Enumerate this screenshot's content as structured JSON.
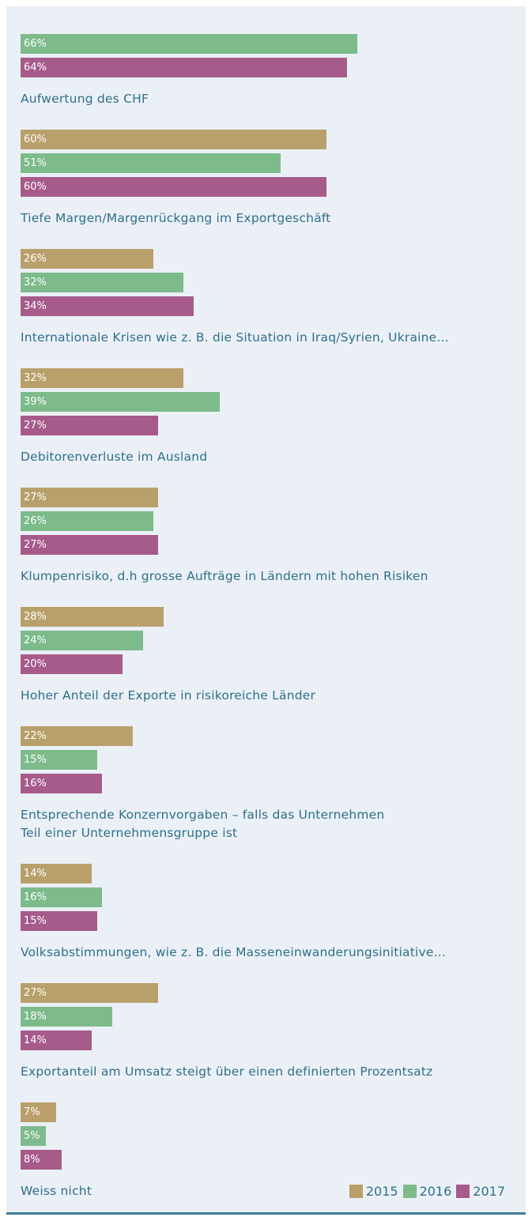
{
  "chart_data": {
    "type": "bar",
    "orientation": "horizontal",
    "categories": [
      "Aufwertung des CHF",
      "Tiefe Margen/Margenrückgang im Exportgeschäft",
      "Internationale Krisen wie z. B. die Situation in Iraq/Syrien, Ukraine...",
      "Debitorenverluste im Ausland",
      "Klumpenrisiko, d.h grosse Aufträge in Ländern mit hohen Risiken",
      "Hoher Anteil der Exporte in risikoreiche Länder",
      "Entsprechende Konzernvorgaben – falls das Unternehmen\nTeil einer Unternehmensgruppe ist",
      "Volksabstimmungen, wie z. B. die Masseneinwanderungsinitiative...",
      "Exportanteil am Umsatz steigt über einen definierten Prozentsatz",
      "Weiss nicht"
    ],
    "series": [
      {
        "name": "2015",
        "color": "#b9a06b",
        "values": [
          null,
          60,
          26,
          32,
          27,
          28,
          22,
          14,
          27,
          7
        ],
        "value_labels": [
          null,
          "60%",
          "26%",
          "32%",
          "27%",
          "28%",
          "22%",
          "14%",
          "27%",
          "7%"
        ]
      },
      {
        "name": "2016",
        "color": "#7dbb8b",
        "values": [
          66,
          51,
          32,
          39,
          26,
          24,
          15,
          16,
          18,
          5
        ],
        "value_labels": [
          "66%",
          "51%",
          "32%",
          "39%",
          "26%",
          "24%",
          "15%",
          "16%",
          "18%",
          "5%"
        ]
      },
      {
        "name": "2017",
        "color": "#a65b8b",
        "values": [
          64,
          60,
          34,
          27,
          27,
          20,
          16,
          15,
          14,
          8
        ],
        "value_labels": [
          "64%",
          "60%",
          "34%",
          "27%",
          "27%",
          "20%",
          "16%",
          "15%",
          "14%",
          "8%"
        ]
      }
    ],
    "legend": "bottom-right"
  }
}
